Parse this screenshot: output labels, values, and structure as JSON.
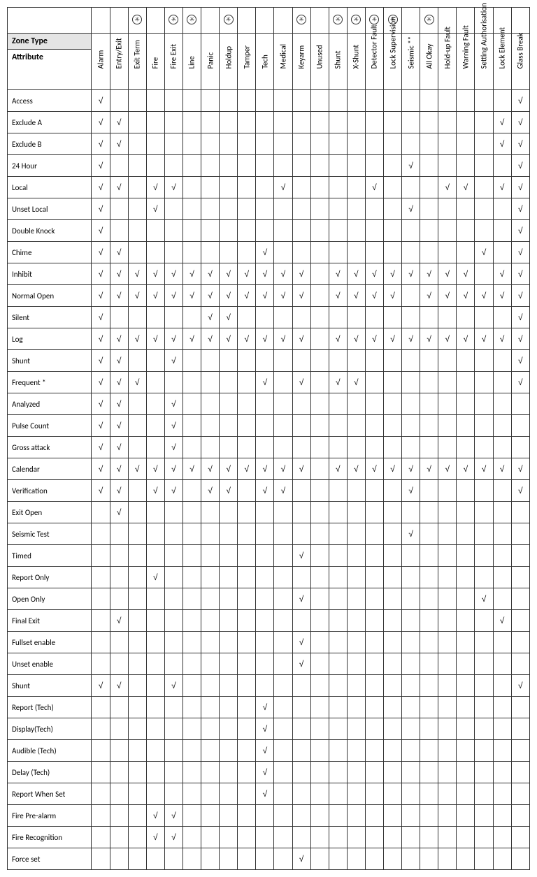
{
  "labels": {
    "zoneType": "Zone Type",
    "attribute": "Attribute"
  },
  "checkMark": "√",
  "columns": [
    "Alarm",
    "Entry/Exit",
    "Exit Term",
    "Fire",
    "Fire Exit",
    "Line",
    "Panic",
    "Holdup",
    "Tamper",
    "Tech",
    "Medical",
    "Keyarm",
    "Unused",
    "Shunt",
    "X-Shunt",
    "Detector Fault",
    "Lock Supervision",
    "Seismic **",
    "All Okay",
    "Hold-up Fault",
    "Warning Fault",
    "Setting Authorisation",
    "Lock Element",
    "Glass Break"
  ],
  "iconCols": [
    false,
    false,
    true,
    false,
    true,
    true,
    false,
    true,
    false,
    false,
    false,
    true,
    false,
    true,
    true,
    true,
    true,
    false,
    true,
    false,
    false,
    false,
    false,
    false
  ],
  "rows": [
    {
      "label": "Access",
      "marks": [
        1,
        0,
        0,
        0,
        0,
        0,
        0,
        0,
        0,
        0,
        0,
        0,
        0,
        0,
        0,
        0,
        0,
        0,
        0,
        0,
        0,
        0,
        0,
        1
      ]
    },
    {
      "label": "Exclude A",
      "marks": [
        1,
        1,
        0,
        0,
        0,
        0,
        0,
        0,
        0,
        0,
        0,
        0,
        0,
        0,
        0,
        0,
        0,
        0,
        0,
        0,
        0,
        0,
        1,
        1
      ]
    },
    {
      "label": "Exclude B",
      "marks": [
        1,
        1,
        0,
        0,
        0,
        0,
        0,
        0,
        0,
        0,
        0,
        0,
        0,
        0,
        0,
        0,
        0,
        0,
        0,
        0,
        0,
        0,
        1,
        1
      ]
    },
    {
      "label": "24 Hour",
      "marks": [
        1,
        0,
        0,
        0,
        0,
        0,
        0,
        0,
        0,
        0,
        0,
        0,
        0,
        0,
        0,
        0,
        0,
        1,
        0,
        0,
        0,
        0,
        0,
        1
      ]
    },
    {
      "label": "Local",
      "marks": [
        1,
        1,
        0,
        1,
        1,
        0,
        0,
        0,
        0,
        0,
        1,
        0,
        0,
        0,
        0,
        1,
        0,
        0,
        0,
        1,
        1,
        0,
        1,
        1
      ]
    },
    {
      "label": "Unset Local",
      "marks": [
        1,
        0,
        0,
        1,
        0,
        0,
        0,
        0,
        0,
        0,
        0,
        0,
        0,
        0,
        0,
        0,
        0,
        1,
        0,
        0,
        0,
        0,
        0,
        1
      ]
    },
    {
      "label": "Double Knock",
      "marks": [
        1,
        0,
        0,
        0,
        0,
        0,
        0,
        0,
        0,
        0,
        0,
        0,
        0,
        0,
        0,
        0,
        0,
        0,
        0,
        0,
        0,
        0,
        0,
        1
      ]
    },
    {
      "label": "Chime",
      "marks": [
        1,
        1,
        0,
        0,
        0,
        0,
        0,
        0,
        0,
        1,
        0,
        0,
        0,
        0,
        0,
        0,
        0,
        0,
        0,
        0,
        0,
        1,
        0,
        1
      ]
    },
    {
      "label": "Inhibit",
      "marks": [
        1,
        1,
        1,
        1,
        1,
        1,
        1,
        1,
        1,
        1,
        1,
        1,
        0,
        1,
        1,
        1,
        1,
        1,
        1,
        1,
        1,
        0,
        1,
        1
      ]
    },
    {
      "label": "Normal Open",
      "marks": [
        1,
        1,
        1,
        1,
        1,
        1,
        1,
        1,
        1,
        1,
        1,
        1,
        0,
        1,
        1,
        1,
        1,
        0,
        1,
        1,
        1,
        1,
        1,
        1
      ]
    },
    {
      "label": "Silent",
      "marks": [
        1,
        0,
        0,
        0,
        0,
        0,
        1,
        1,
        0,
        0,
        0,
        0,
        0,
        0,
        0,
        0,
        0,
        0,
        0,
        0,
        0,
        0,
        0,
        1
      ]
    },
    {
      "label": "Log",
      "marks": [
        1,
        1,
        1,
        1,
        1,
        1,
        1,
        1,
        1,
        1,
        1,
        1,
        0,
        1,
        1,
        1,
        1,
        1,
        1,
        1,
        1,
        1,
        1,
        1
      ]
    },
    {
      "label": "Shunt",
      "marks": [
        1,
        1,
        0,
        0,
        1,
        0,
        0,
        0,
        0,
        0,
        0,
        0,
        0,
        0,
        0,
        0,
        0,
        0,
        0,
        0,
        0,
        0,
        0,
        1
      ]
    },
    {
      "label": "Frequent *",
      "marks": [
        1,
        1,
        1,
        0,
        0,
        0,
        0,
        0,
        0,
        1,
        0,
        1,
        0,
        1,
        1,
        0,
        0,
        0,
        0,
        0,
        0,
        0,
        0,
        1
      ]
    },
    {
      "label": "Analyzed",
      "marks": [
        1,
        1,
        0,
        0,
        1,
        0,
        0,
        0,
        0,
        0,
        0,
        0,
        0,
        0,
        0,
        0,
        0,
        0,
        0,
        0,
        0,
        0,
        0,
        0
      ]
    },
    {
      "label": "Pulse Count",
      "marks": [
        1,
        1,
        0,
        0,
        1,
        0,
        0,
        0,
        0,
        0,
        0,
        0,
        0,
        0,
        0,
        0,
        0,
        0,
        0,
        0,
        0,
        0,
        0,
        0
      ]
    },
    {
      "label": "Gross attack",
      "marks": [
        1,
        1,
        0,
        0,
        1,
        0,
        0,
        0,
        0,
        0,
        0,
        0,
        0,
        0,
        0,
        0,
        0,
        0,
        0,
        0,
        0,
        0,
        0,
        0
      ]
    },
    {
      "label": "Calendar",
      "marks": [
        1,
        1,
        1,
        1,
        1,
        1,
        1,
        1,
        1,
        1,
        1,
        1,
        0,
        1,
        1,
        1,
        1,
        1,
        1,
        1,
        1,
        1,
        1,
        1
      ]
    },
    {
      "label": "Verification",
      "marks": [
        1,
        1,
        0,
        1,
        1,
        0,
        1,
        1,
        0,
        1,
        1,
        0,
        0,
        0,
        0,
        0,
        0,
        1,
        0,
        0,
        0,
        0,
        0,
        1
      ]
    },
    {
      "label": "Exit Open",
      "marks": [
        0,
        1,
        0,
        0,
        0,
        0,
        0,
        0,
        0,
        0,
        0,
        0,
        0,
        0,
        0,
        0,
        0,
        0,
        0,
        0,
        0,
        0,
        0,
        0
      ]
    },
    {
      "label": "Seismic Test",
      "marks": [
        0,
        0,
        0,
        0,
        0,
        0,
        0,
        0,
        0,
        0,
        0,
        0,
        0,
        0,
        0,
        0,
        0,
        1,
        0,
        0,
        0,
        0,
        0,
        0
      ]
    },
    {
      "label": "Timed",
      "marks": [
        0,
        0,
        0,
        0,
        0,
        0,
        0,
        0,
        0,
        0,
        0,
        1,
        0,
        0,
        0,
        0,
        0,
        0,
        0,
        0,
        0,
        0,
        0,
        0
      ]
    },
    {
      "label": "Report Only",
      "marks": [
        0,
        0,
        0,
        1,
        0,
        0,
        0,
        0,
        0,
        0,
        0,
        0,
        0,
        0,
        0,
        0,
        0,
        0,
        0,
        0,
        0,
        0,
        0,
        0
      ]
    },
    {
      "label": "Open Only",
      "marks": [
        0,
        0,
        0,
        0,
        0,
        0,
        0,
        0,
        0,
        0,
        0,
        1,
        0,
        0,
        0,
        0,
        0,
        0,
        0,
        0,
        0,
        1,
        0,
        0
      ]
    },
    {
      "label": "Final Exit",
      "marks": [
        0,
        1,
        0,
        0,
        0,
        0,
        0,
        0,
        0,
        0,
        0,
        0,
        0,
        0,
        0,
        0,
        0,
        0,
        0,
        0,
        0,
        0,
        1,
        0
      ]
    },
    {
      "label": "Fullset enable",
      "marks": [
        0,
        0,
        0,
        0,
        0,
        0,
        0,
        0,
        0,
        0,
        0,
        1,
        0,
        0,
        0,
        0,
        0,
        0,
        0,
        0,
        0,
        0,
        0,
        0
      ]
    },
    {
      "label": "Unset enable",
      "marks": [
        0,
        0,
        0,
        0,
        0,
        0,
        0,
        0,
        0,
        0,
        0,
        1,
        0,
        0,
        0,
        0,
        0,
        0,
        0,
        0,
        0,
        0,
        0,
        0
      ]
    },
    {
      "label": "Shunt",
      "marks": [
        1,
        1,
        0,
        0,
        1,
        0,
        0,
        0,
        0,
        0,
        0,
        0,
        0,
        0,
        0,
        0,
        0,
        0,
        0,
        0,
        0,
        0,
        0,
        1
      ]
    },
    {
      "label": "Report (Tech)",
      "marks": [
        0,
        0,
        0,
        0,
        0,
        0,
        0,
        0,
        0,
        1,
        0,
        0,
        0,
        0,
        0,
        0,
        0,
        0,
        0,
        0,
        0,
        0,
        0,
        0
      ]
    },
    {
      "label": "Display(Tech)",
      "marks": [
        0,
        0,
        0,
        0,
        0,
        0,
        0,
        0,
        0,
        1,
        0,
        0,
        0,
        0,
        0,
        0,
        0,
        0,
        0,
        0,
        0,
        0,
        0,
        0
      ]
    },
    {
      "label": "Audible (Tech)",
      "marks": [
        0,
        0,
        0,
        0,
        0,
        0,
        0,
        0,
        0,
        1,
        0,
        0,
        0,
        0,
        0,
        0,
        0,
        0,
        0,
        0,
        0,
        0,
        0,
        0
      ]
    },
    {
      "label": "Delay (Tech)",
      "marks": [
        0,
        0,
        0,
        0,
        0,
        0,
        0,
        0,
        0,
        1,
        0,
        0,
        0,
        0,
        0,
        0,
        0,
        0,
        0,
        0,
        0,
        0,
        0,
        0
      ]
    },
    {
      "label": "Report When Set",
      "marks": [
        0,
        0,
        0,
        0,
        0,
        0,
        0,
        0,
        0,
        1,
        0,
        0,
        0,
        0,
        0,
        0,
        0,
        0,
        0,
        0,
        0,
        0,
        0,
        0
      ]
    },
    {
      "label": "Fire Pre-alarm",
      "marks": [
        0,
        0,
        0,
        1,
        1,
        0,
        0,
        0,
        0,
        0,
        0,
        0,
        0,
        0,
        0,
        0,
        0,
        0,
        0,
        0,
        0,
        0,
        0,
        0
      ]
    },
    {
      "label": "Fire Recognition",
      "marks": [
        0,
        0,
        0,
        1,
        1,
        0,
        0,
        0,
        0,
        0,
        0,
        0,
        0,
        0,
        0,
        0,
        0,
        0,
        0,
        0,
        0,
        0,
        0,
        0
      ]
    },
    {
      "label": "Force set",
      "marks": [
        0,
        0,
        0,
        0,
        0,
        0,
        0,
        0,
        0,
        0,
        0,
        1,
        0,
        0,
        0,
        0,
        0,
        0,
        0,
        0,
        0,
        0,
        0,
        0
      ]
    }
  ],
  "style": {
    "firstColWidth": 120,
    "dataColWidth": 26,
    "headerBg": "#e5e5e5",
    "borderColor": "#333333",
    "fontSize": 11,
    "checkFontSize": 12
  }
}
